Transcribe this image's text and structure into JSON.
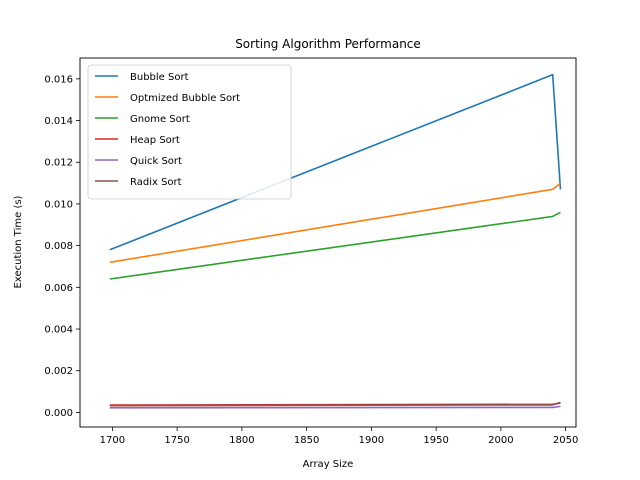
{
  "chart_data": {
    "type": "line",
    "title": "Sorting Algorithm Performance",
    "xlabel": "Array Size",
    "ylabel": "Execution Time (s)",
    "xlim": [
      1675,
      2058
    ],
    "ylim": [
      -0.0007,
      0.017
    ],
    "xticks": [
      1700,
      1750,
      1800,
      1850,
      1900,
      1950,
      2000,
      2050
    ],
    "yticks": [
      0.0,
      0.002,
      0.004,
      0.006,
      0.008,
      0.01,
      0.012,
      0.014,
      0.016
    ],
    "ytick_labels": [
      "0.000",
      "0.002",
      "0.004",
      "0.006",
      "0.008",
      "0.010",
      "0.012",
      "0.014",
      "0.016"
    ],
    "grid": false,
    "legend_position": "top-left",
    "series": [
      {
        "name": "Bubble Sort",
        "color": "#1f77b4",
        "x": [
          1698,
          2040,
          2046
        ],
        "y": [
          0.0078,
          0.0162,
          0.0107
        ]
      },
      {
        "name": "Optmized Bubble Sort",
        "color": "#ff7f0e",
        "x": [
          1698,
          2040,
          2046
        ],
        "y": [
          0.0072,
          0.0107,
          0.011
        ]
      },
      {
        "name": "Gnome Sort",
        "color": "#2ca02c",
        "x": [
          1698,
          2040,
          2046
        ],
        "y": [
          0.0064,
          0.0094,
          0.0096
        ]
      },
      {
        "name": "Heap Sort",
        "color": "#d62728",
        "x": [
          1698,
          2040,
          2046
        ],
        "y": [
          0.00035,
          0.00039,
          0.00045
        ]
      },
      {
        "name": "Quick Sort",
        "color": "#9467bd",
        "x": [
          1698,
          2040,
          2046
        ],
        "y": [
          0.00022,
          0.00024,
          0.00029
        ]
      },
      {
        "name": "Radix Sort",
        "color": "#8c564b",
        "x": [
          1698,
          2040,
          2046
        ],
        "y": [
          0.00032,
          0.00036,
          0.00048
        ]
      }
    ]
  }
}
